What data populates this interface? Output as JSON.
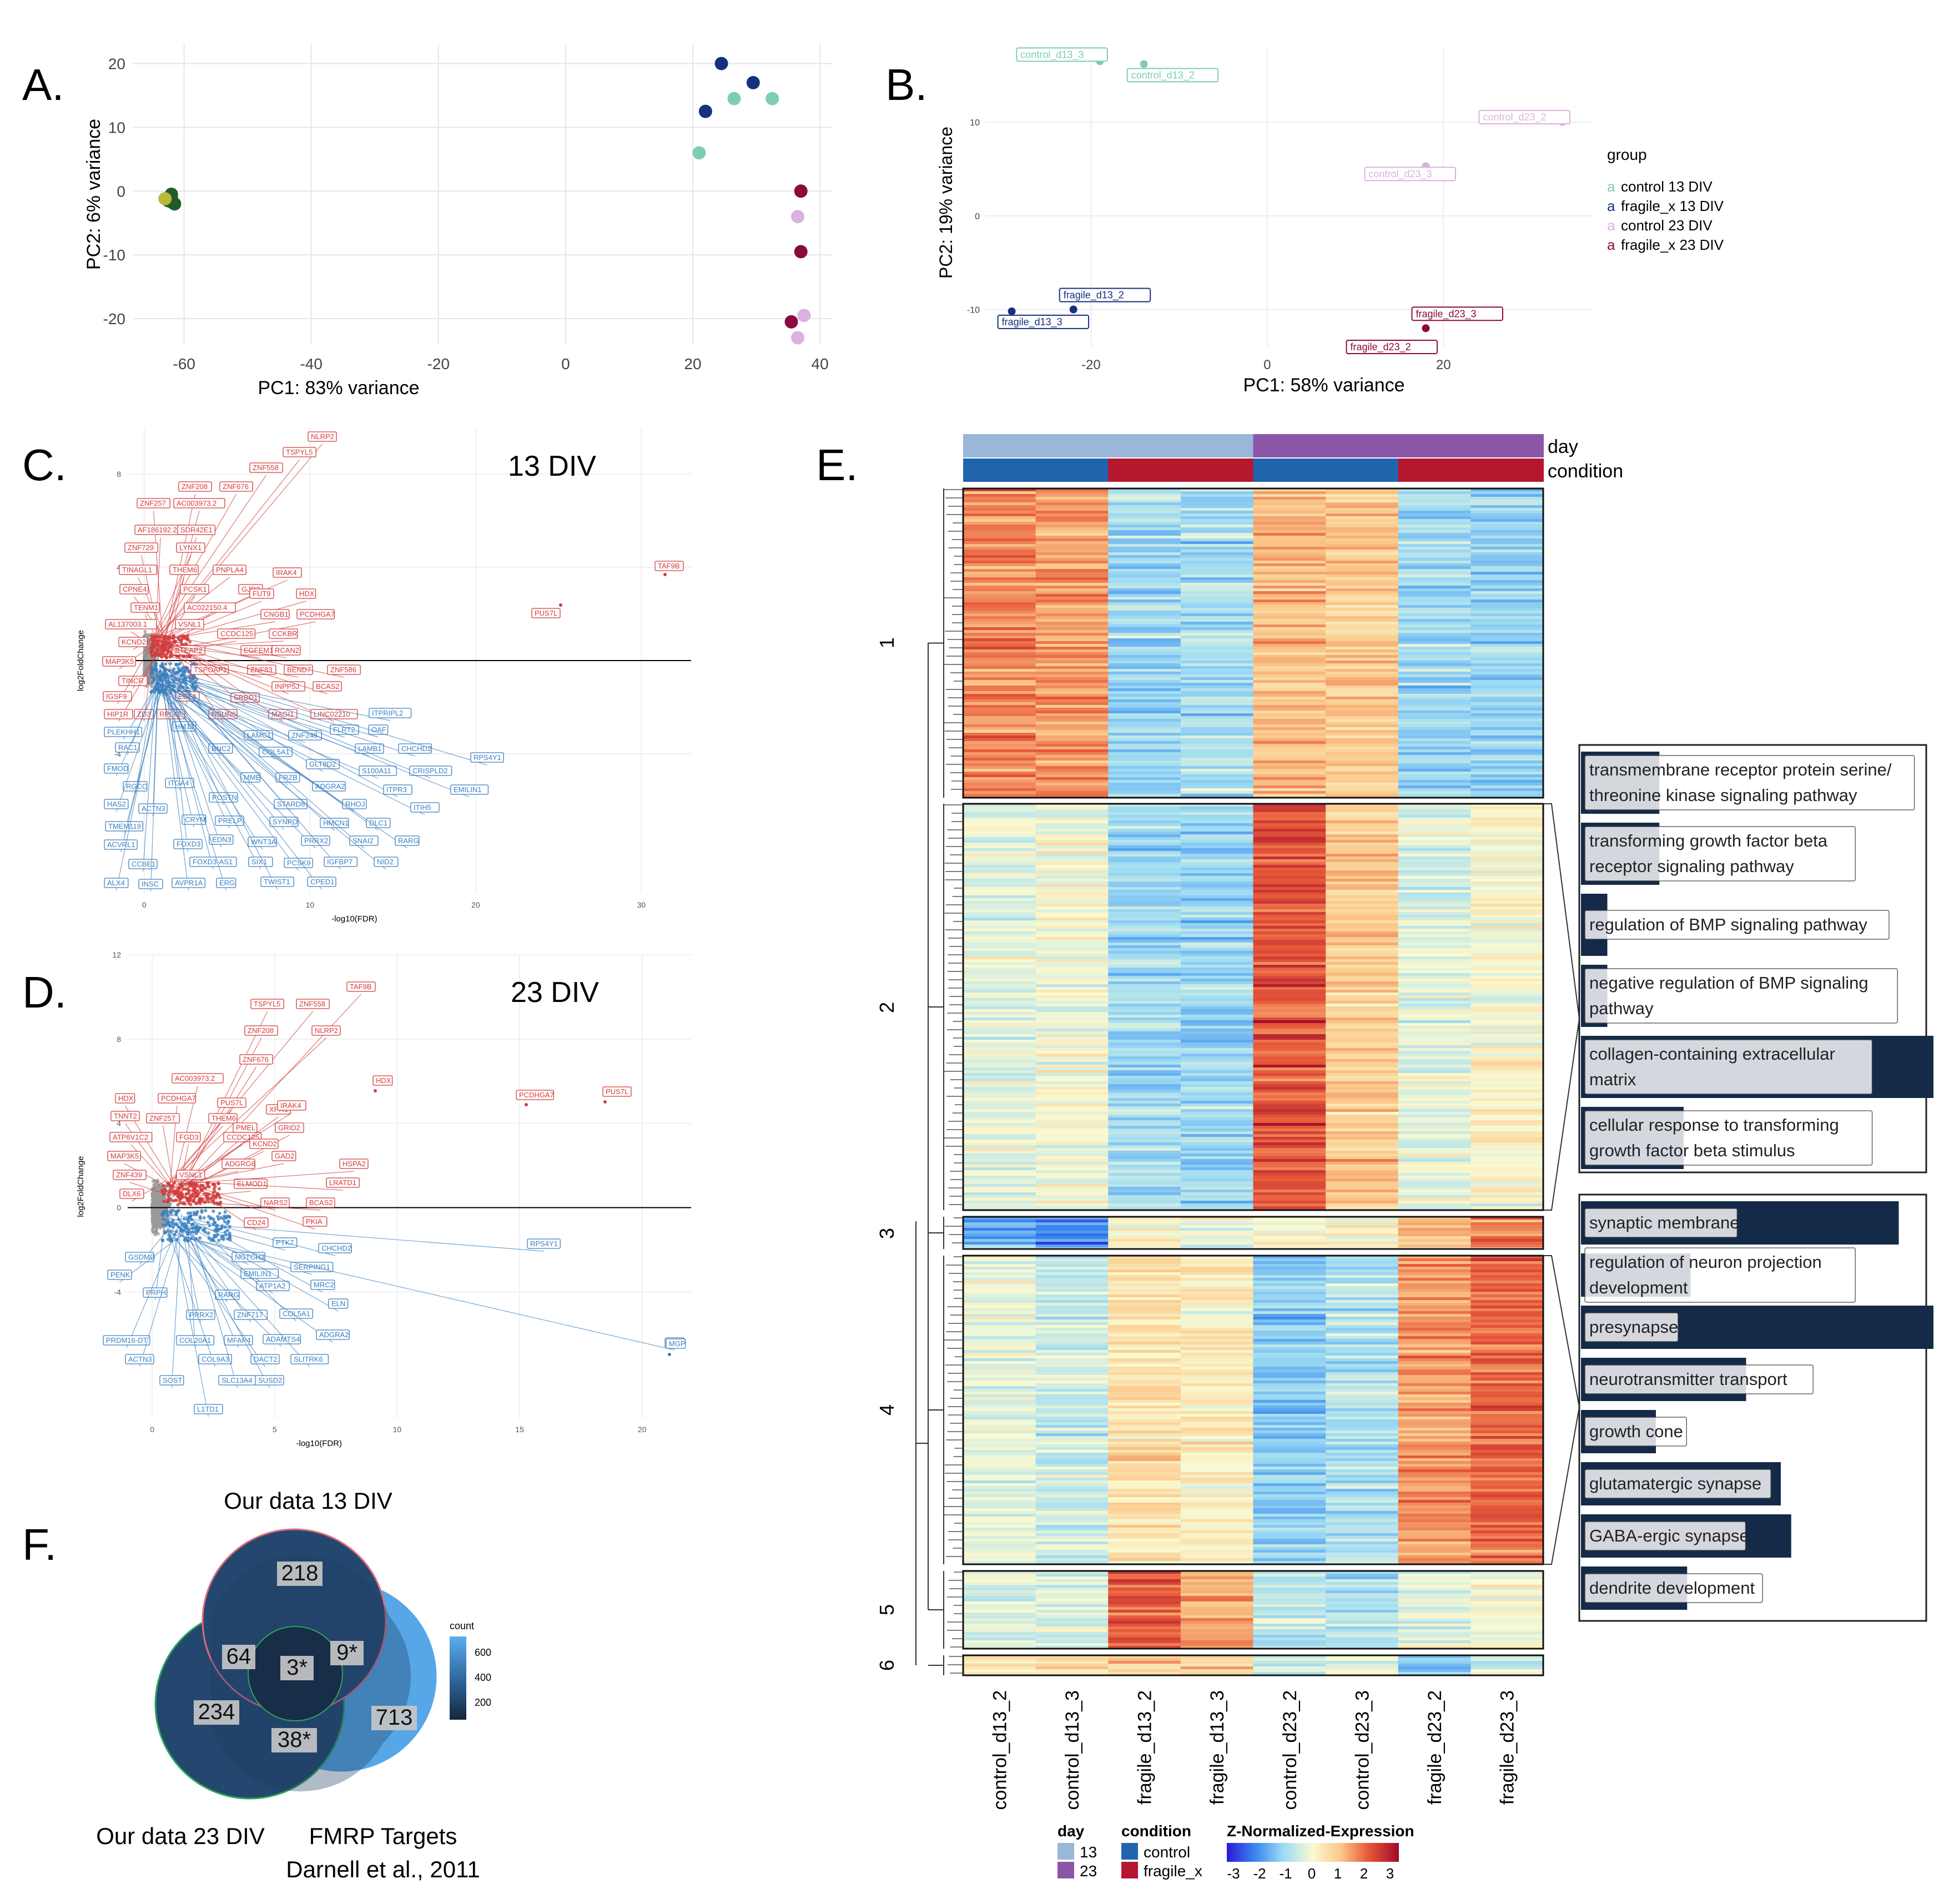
{
  "panel_letters": {
    "a": "A.",
    "b": "B.",
    "c": "C.",
    "d": "D.",
    "e": "E.",
    "f": "F."
  },
  "colors": {
    "control13": "#7fcdb0",
    "fragile13": "#15317e",
    "control23": "#d9b3dd",
    "fragile23": "#8b0a3e",
    "grid": "#e6e6e6",
    "up": "#d23b3b",
    "down": "#3a7fbf",
    "ns": "#999999",
    "day13": "#9ab6d8",
    "day23": "#8c56a8",
    "condControl": "#2064ad",
    "condFragile": "#b5172f",
    "goBar": "#142a48",
    "goLabelBg": "#ffffff",
    "vennA": "#24476f",
    "vennB": "#23476e",
    "vennC": "#57a7e8"
  },
  "chart_data": [
    {
      "id": "A",
      "type": "scatter",
      "title": "",
      "xlabel": "PC1: 83% variance",
      "ylabel": "PC2: 6% variance",
      "xlim": [
        -68,
        42
      ],
      "ylim": [
        -24,
        23
      ],
      "xticks": [
        -60,
        -40,
        -20,
        0,
        20,
        40
      ],
      "yticks": [
        -20,
        -10,
        0,
        10,
        20
      ],
      "series": [
        {
          "name": "cluster_green",
          "color": "#1f5c28",
          "points": [
            [
              -62,
              -1
            ],
            [
              -62.5,
              -1.5
            ],
            [
              -61.5,
              -2
            ],
            [
              -62,
              -0.5
            ],
            [
              -61.8,
              -1.8
            ],
            [
              -62.6,
              -1.2
            ]
          ]
        },
        {
          "name": "cluster_yellow",
          "color": "#b9b93a",
          "points": [
            [
              -63,
              -1.2
            ]
          ]
        },
        {
          "name": "control 13 DIV",
          "color": "#7fcdb0",
          "points": [
            [
              21,
              6
            ],
            [
              26.5,
              14.5
            ],
            [
              32.5,
              14.5
            ]
          ]
        },
        {
          "name": "fragile_x 13 DIV",
          "color": "#15317e",
          "points": [
            [
              24.5,
              20
            ],
            [
              29.5,
              17
            ],
            [
              22,
              12.5
            ]
          ]
        },
        {
          "name": "control 23 DIV",
          "color": "#d9b3dd",
          "points": [
            [
              36.5,
              -4
            ],
            [
              37.5,
              -19.5
            ],
            [
              36.5,
              -23
            ]
          ]
        },
        {
          "name": "fragile_x 23 DIV",
          "color": "#8b0a3e",
          "points": [
            [
              37,
              0
            ],
            [
              37,
              -9.5
            ],
            [
              35.5,
              -20.5
            ]
          ]
        }
      ]
    },
    {
      "id": "B",
      "type": "scatter",
      "title": "",
      "xlabel": "PC1: 58% variance",
      "ylabel": "PC2: 19% variance",
      "xlim": [
        -32,
        37
      ],
      "ylim": [
        -14,
        18
      ],
      "xticks": [
        -20,
        0,
        20
      ],
      "yticks": [
        -10,
        0,
        10
      ],
      "legend_title": "group",
      "legend_position": "right",
      "series": [
        {
          "name": "control 13 DIV",
          "color": "#7fcdb0",
          "points": [
            [
              -19,
              16.5,
              "control_d13_3"
            ],
            [
              -14,
              16.2,
              "control_d13_2"
            ]
          ]
        },
        {
          "name": "fragile_x 13 DIV",
          "color": "#15317e",
          "points": [
            [
              -29,
              -10.2,
              "fragile_d13_3"
            ],
            [
              -22,
              -10,
              "fragile_d13_2"
            ]
          ]
        },
        {
          "name": "control 23 DIV",
          "color": "#d9b3dd",
          "points": [
            [
              33.5,
              10,
              "control_d23_2"
            ],
            [
              18,
              5.3,
              "control_d23_3"
            ]
          ]
        },
        {
          "name": "fragile_x 23 DIV",
          "color": "#8b0a3e",
          "points": [
            [
              18,
              -12,
              "fragile_d23_3"
            ],
            [
              17.5,
              -14,
              "fragile_d23_2"
            ]
          ]
        }
      ]
    },
    {
      "id": "C",
      "type": "scatter",
      "title": "13 DIV",
      "subtype": "volcano",
      "xlabel": "-log10(FDR)",
      "ylabel": "log2FoldChange",
      "xlim": [
        -1,
        33
      ],
      "ylim": [
        -10,
        10
      ],
      "xticks": [
        0,
        10,
        20,
        30
      ],
      "yticks": [
        -4,
        0,
        4,
        8
      ],
      "up_labels": [
        "NLRP2",
        "TSPYL5",
        "ZNF558",
        "ZNF208",
        "ZNF676",
        "ZNF257",
        "AC003973.2",
        "AF186192.2",
        "SDR42E1",
        "ZNF729",
        "LYNX1",
        "TINAGL1",
        "THEM6",
        "PNPLA4",
        "CPNE4",
        "PCSK1",
        "GJD2",
        "IRAK4",
        "TENM1",
        "AC022150.4",
        "FUT9",
        "HDX",
        "AL137003.1",
        "VSNL1",
        "CNGB1",
        "PCDHGA7",
        "KCND2",
        "CCDC125",
        "CCKBR",
        "MAP3K5",
        "STEAP2",
        "EGFEM1P",
        "RCAN2",
        "TINCR",
        "TSPOAP1",
        "ZNF83",
        "BEND7",
        "ZNF586",
        "IGSF9",
        "EBF4",
        "INPP5J",
        "BCAS2",
        "SRBD1",
        "HIP1R",
        "ZD3",
        "RPL42",
        "NSUN6",
        "MAGI1",
        "LINC02210",
        "TAF9B",
        "PUS7L"
      ],
      "down_labels": [
        "ITPRIPL2",
        "PLEKHH1",
        "HM13",
        "FLRT2",
        "OAF",
        "RAC1",
        "BNC2",
        "LAMC1",
        "ZNF248",
        "LAMB1",
        "CHCHD2",
        "FMOD",
        "COL5A1",
        "GLT8D2",
        "S100A11",
        "CRISPLD2",
        "RPS4Y1",
        "RGCC",
        "ITGA4",
        "MME",
        "FRZB",
        "ADGRA2",
        "ITPR3",
        "EMILIN1",
        "HAS2",
        "ACTN3",
        "POSTN",
        "STARD8",
        "RHOJ",
        "ITIH5",
        "TMEM119",
        "CRYM",
        "PRELP",
        "SYNPO",
        "HMCN1",
        "DLC1",
        "ACVRL1",
        "FOXD3",
        "EDN3",
        "WNT3A",
        "PRRX2",
        "SNAI2",
        "RARG",
        "CCBE1",
        "FOXD3-AS1",
        "SIX1",
        "PCSK9",
        "IGFBP7",
        "NID2",
        "ALX4",
        "INSC",
        "AVPR1A",
        "ERG",
        "TWIST1",
        "CPED1"
      ]
    },
    {
      "id": "D",
      "type": "scatter",
      "title": "23 DIV",
      "subtype": "volcano",
      "xlabel": "-log10(FDR)",
      "ylabel": "log2FoldChange",
      "xlim": [
        -1,
        22
      ],
      "ylim": [
        -10,
        12
      ],
      "xticks": [
        0,
        5,
        10,
        15,
        20
      ],
      "yticks": [
        -4,
        0,
        4,
        8,
        12
      ],
      "up_labels": [
        "TAF9B",
        "TSPYL5",
        "ZNF558",
        "NLRP2",
        "ZNF208",
        "ZNF676",
        "AC003973.2",
        "HDX",
        "PCDHGA7",
        "PUS7L",
        "TNNT2",
        "ZNF257",
        "THEM6",
        "PMEL",
        "ATP6V1C2",
        "FGD3",
        "CCDC125",
        "GRID2",
        "MAP3K5",
        "KCND2",
        "GAD2",
        "ZNF439",
        "VSNL1",
        "ADGRG6",
        "ELMOD1",
        "HSPA2",
        "DLX6",
        "LRATD1",
        "NARS2",
        "BCAS2",
        "CD24",
        "PKIA",
        "XPR1",
        "IRAK4"
      ],
      "down_labels": [
        "PTK7",
        "CHCHD2",
        "NOTCH3",
        "SERPING1",
        "EMILIN1",
        "RPS4Y1",
        "GSDMD",
        "MRC2",
        "ATP1A2",
        "PENK",
        "RARG",
        "ELN",
        "PRPH",
        "PRRX2",
        "ZNF717",
        "COL5A1",
        "PRDM16-DT",
        "COL20A1",
        "MFAP4",
        "ADAMTS4",
        "ADGRA2",
        "MGP",
        "ACTN3",
        "COL9A3",
        "DACT2",
        "SLITRK6",
        "SOST",
        "SLC13A4",
        "SUSD2",
        "L1TD1"
      ]
    },
    {
      "id": "E",
      "type": "heatmap",
      "columns": [
        "control_d13_2",
        "control_d13_3",
        "fragile_d13_2",
        "fragile_d13_3",
        "control_d23_2",
        "control_d23_3",
        "fragile_d23_2",
        "fragile_d23_3"
      ],
      "day_row": [
        "13",
        "13",
        "13",
        "13",
        "23",
        "23",
        "23",
        "23"
      ],
      "condition_row": [
        "control",
        "control",
        "fragile_x",
        "fragile_x",
        "control",
        "control",
        "fragile_x",
        "fragile_x"
      ],
      "annotation_labels": [
        "day",
        "condition"
      ],
      "row_clusters": [
        {
          "id": "1",
          "pattern": [
            1.6,
            1.4,
            -1.0,
            -0.9,
            1.1,
            0.9,
            -1.0,
            -1.1
          ]
        },
        {
          "id": "2",
          "pattern": [
            -0.2,
            0.0,
            -1.0,
            -1.1,
            2.1,
            0.9,
            -0.3,
            0.1
          ]
        },
        {
          "id": "3",
          "pattern": [
            -1.6,
            -2.0,
            0.2,
            0.0,
            0.1,
            0.2,
            1.2,
            1.6
          ]
        },
        {
          "id": "4",
          "pattern": [
            -0.2,
            -0.5,
            0.5,
            0.3,
            -1.2,
            -0.8,
            1.4,
            1.9
          ]
        },
        {
          "id": "5",
          "pattern": [
            -0.3,
            -0.4,
            2.1,
            1.3,
            -0.7,
            -0.8,
            -0.3,
            0.0
          ]
        },
        {
          "id": "6",
          "pattern": [
            0.6,
            0.4,
            1.0,
            0.8,
            -0.5,
            -0.2,
            -1.2,
            -0.6
          ]
        }
      ],
      "legend": {
        "day_title": "day",
        "day_values": [
          "13",
          "23"
        ],
        "condition_title": "condition",
        "condition_values": [
          "control",
          "fragile_x"
        ],
        "scale_title": "Z-Normalized-Expression",
        "scale_ticks": [
          "-3",
          "-2",
          "-1",
          "0",
          "1",
          "2",
          "3"
        ]
      },
      "go_cluster2": [
        {
          "term": "transmembrane receptor protein serine/ threonine kinase signaling pathway",
          "value": 0.21
        },
        {
          "term": "transforming growth factor beta receptor signaling pathway",
          "value": 0.21
        },
        {
          "term": "regulation of BMP signaling pathway",
          "value": 0.06
        },
        {
          "term": "negative regulation of BMP signaling pathway",
          "value": 0.06
        },
        {
          "term": "collagen-containing extracellular matrix",
          "value": 1.0
        },
        {
          "term": "cellular response to transforming growth factor beta stimulus",
          "value": 0.28
        }
      ],
      "go_cluster4": [
        {
          "term": "synaptic membrane",
          "value": 0.9
        },
        {
          "term": "regulation of neuron projection development",
          "value": 0.3
        },
        {
          "term": "presynapse",
          "value": 1.0
        },
        {
          "term": "neurotransmitter transport",
          "value": 0.46
        },
        {
          "term": "growth cone",
          "value": 0.2
        },
        {
          "term": "glutamatergic synapse",
          "value": 0.56
        },
        {
          "term": "GABA-ergic synapse",
          "value": 0.59
        },
        {
          "term": "dendrite development",
          "value": 0.29
        }
      ]
    },
    {
      "id": "F",
      "type": "venn",
      "sets": [
        "Our data 13 DIV",
        "Our data 23 DIV",
        "FMRP Targets"
      ],
      "citation": "Darnell et al., 2011",
      "regions": [
        {
          "sets": [
            "13"
          ],
          "count": "218"
        },
        {
          "sets": [
            "13",
            "23"
          ],
          "count": "64"
        },
        {
          "sets": [
            "13",
            "23",
            "FMRP"
          ],
          "count": "3*"
        },
        {
          "sets": [
            "13",
            "FMRP"
          ],
          "count": "9*"
        },
        {
          "sets": [
            "23"
          ],
          "count": "234"
        },
        {
          "sets": [
            "23",
            "FMRP"
          ],
          "count": "38*"
        },
        {
          "sets": [
            "FMRP"
          ],
          "count": "713"
        }
      ],
      "legend_title": "count",
      "legend_ticks": [
        "600",
        "400",
        "200"
      ]
    }
  ]
}
